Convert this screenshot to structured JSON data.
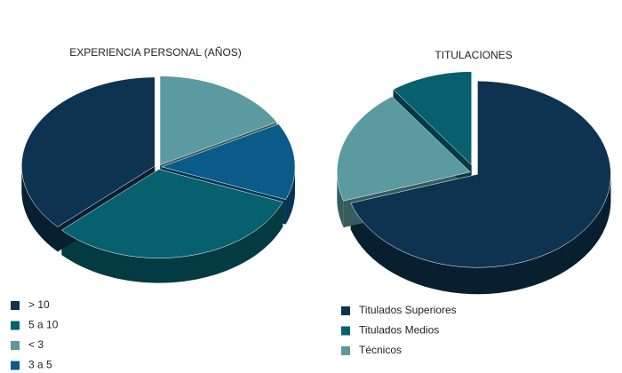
{
  "chart_data": [
    {
      "type": "pie",
      "title": "EXPERIENCIA PERSONAL (AÑOS)",
      "categories": [
        "> 10",
        "5 a 10",
        "< 3",
        "3 a 5"
      ],
      "values": [
        37,
        32,
        17,
        14
      ],
      "colors": [
        "#0d3350",
        "#07606e",
        "#5a9aa0",
        "#0a5a8a"
      ]
    },
    {
      "type": "pie",
      "title": "TITULACIONES",
      "categories": [
        "Titulados Superiores",
        "Titulados Medios",
        "Técnicos"
      ],
      "values": [
        70,
        10,
        20
      ],
      "colors": [
        "#0d3350",
        "#07606e",
        "#5a9aa0"
      ]
    }
  ]
}
